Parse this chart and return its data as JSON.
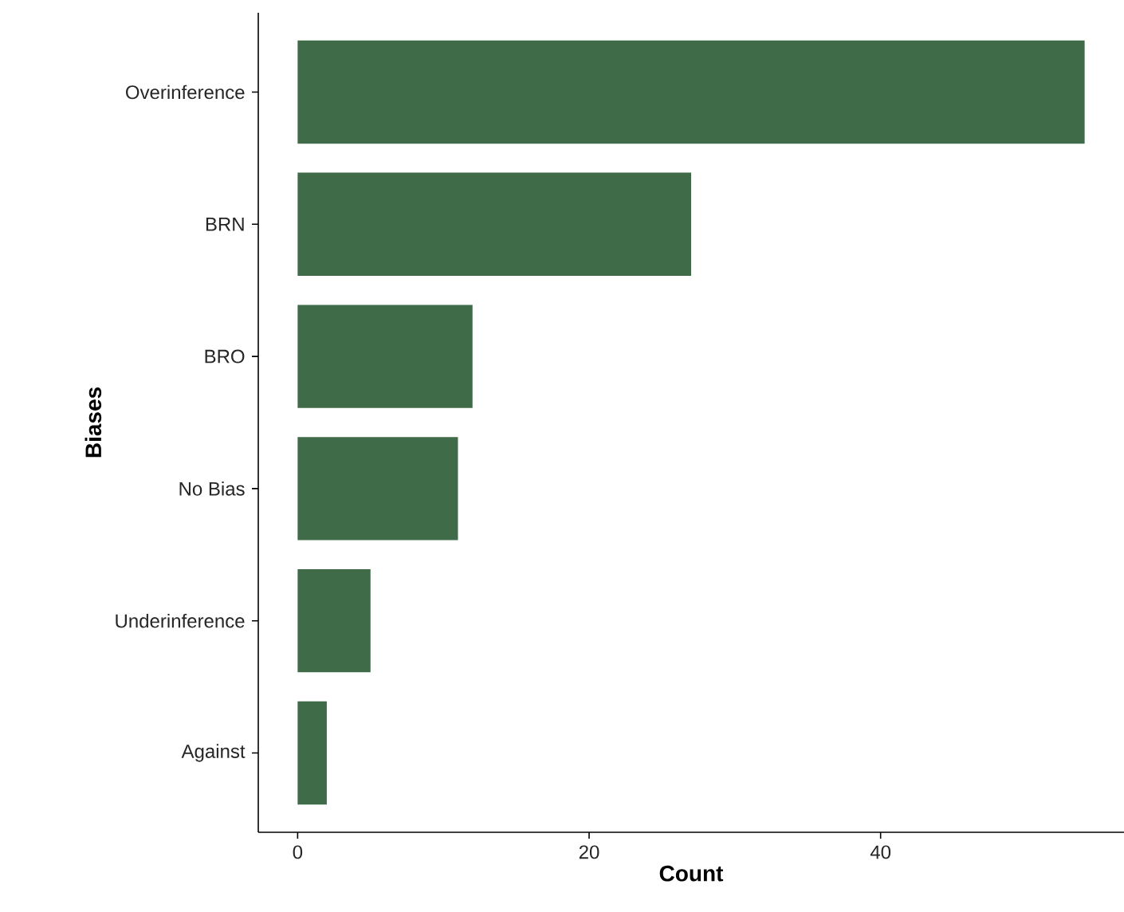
{
  "chart_data": {
    "type": "bar",
    "orientation": "horizontal",
    "categories": [
      "Overinference",
      "BRN",
      "BRO",
      "No Bias",
      "Underinference",
      "Against"
    ],
    "values": [
      54,
      27,
      12,
      11,
      5,
      2
    ],
    "color": "#406b48",
    "xlim": [
      -2.7,
      56.7
    ],
    "xticks": [
      0,
      20,
      40
    ],
    "xlabel": "Count",
    "ylabel": "Biases"
  }
}
